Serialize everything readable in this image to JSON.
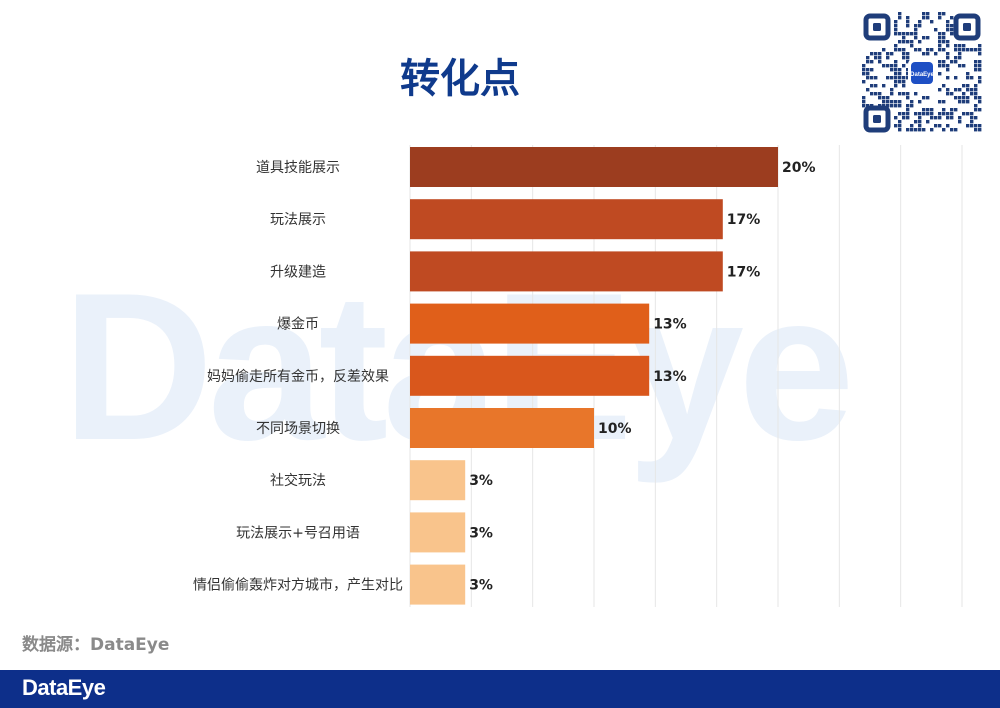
{
  "title": "转化点",
  "watermark": "DataEye",
  "qr_label": "DataEye",
  "source": "数据源：DataEye",
  "footer_brand": "DataEye",
  "colors": {
    "title": "#0f3a8c",
    "footer": "#0d2f8a"
  },
  "chart_data": {
    "type": "bar",
    "orientation": "horizontal",
    "categories": [
      "道具技能展示",
      "玩法展示",
      "升级建造",
      "爆金币",
      "妈妈偷走所有金币，反差效果",
      "不同场景切换",
      "社交玩法",
      "玩法展示+号召用语",
      "情侣偷偷轰炸对方城市，产生对比"
    ],
    "values": [
      20,
      17,
      17,
      13,
      13,
      10,
      3,
      3,
      3
    ],
    "value_labels": [
      "20%",
      "17%",
      "17%",
      "13%",
      "13%",
      "10%",
      "3%",
      "3%",
      "3%"
    ],
    "colors": [
      "#9c3d1f",
      "#bf4a22",
      "#bf4a22",
      "#e05f1a",
      "#d9571c",
      "#e8762a",
      "#f9c48c",
      "#f9c48c",
      "#f9c48c"
    ],
    "xlim": [
      0,
      30
    ],
    "grid": true,
    "unit": "%"
  }
}
